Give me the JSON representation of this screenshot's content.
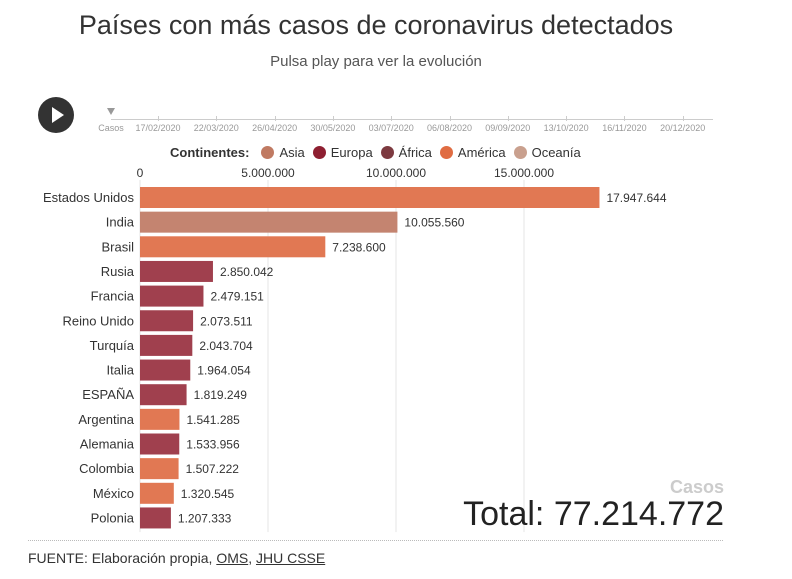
{
  "title": "Países con más casos de coronavirus detectados",
  "subtitle": "Pulsa play para ver la evolución",
  "timeline": {
    "label": "Casos",
    "dates": [
      "17/02/2020",
      "22/03/2020",
      "26/04/2020",
      "30/05/2020",
      "03/07/2020",
      "06/08/2020",
      "09/09/2020",
      "13/10/2020",
      "16/11/2020",
      "20/12/2020"
    ]
  },
  "legend": {
    "title": "Continentes:",
    "items": [
      {
        "name": "Asia",
        "color": "#c07a62"
      },
      {
        "name": "Europa",
        "color": "#8e1f31"
      },
      {
        "name": "África",
        "color": "#7d3a40"
      },
      {
        "name": "América",
        "color": "#e06c42"
      },
      {
        "name": "Oceanía",
        "color": "#c9a08e"
      }
    ]
  },
  "chart_data": {
    "type": "bar",
    "orientation": "horizontal",
    "x_ticks": [
      "0",
      "5.000.000",
      "10.000.000",
      "15.000.000"
    ],
    "x_tick_values": [
      0,
      5000000,
      10000000,
      15000000
    ],
    "xlim": [
      0,
      18000000
    ],
    "grid": true,
    "categories": [
      "Estados Unidos",
      "India",
      "Brasil",
      "Rusia",
      "Francia",
      "Reino Unido",
      "Turquía",
      "Italia",
      "ESPAÑA",
      "Argentina",
      "Alemania",
      "Colombia",
      "México",
      "Polonia"
    ],
    "values": [
      17947644,
      10055560,
      7238600,
      2850042,
      2479151,
      2073511,
      2043704,
      1964054,
      1819249,
      1541285,
      1533956,
      1507222,
      1320545,
      1207333
    ],
    "value_labels": [
      "17.947.644",
      "10.055.560",
      "7.238.600",
      "2.850.042",
      "2.479.151",
      "2.073.511",
      "2.043.704",
      "1.964.054",
      "1.819.249",
      "1.541.285",
      "1.533.956",
      "1.507.222",
      "1.320.545",
      "1.207.333"
    ],
    "continents": [
      "América",
      "Asia",
      "América",
      "Europa",
      "Europa",
      "Europa",
      "Europa",
      "Europa",
      "Europa",
      "América",
      "Europa",
      "América",
      "América",
      "Europa"
    ],
    "bar_colors": {
      "America": "#e17853",
      "Asia": "#c48470",
      "Europa": "#a0404e"
    }
  },
  "total": {
    "label": "Casos",
    "text": "Total: 77.214.772"
  },
  "source": {
    "prefix": "FUENTE: Elaboración propia, ",
    "link1": "OMS",
    "separator": ", ",
    "link2": "JHU CSSE"
  }
}
